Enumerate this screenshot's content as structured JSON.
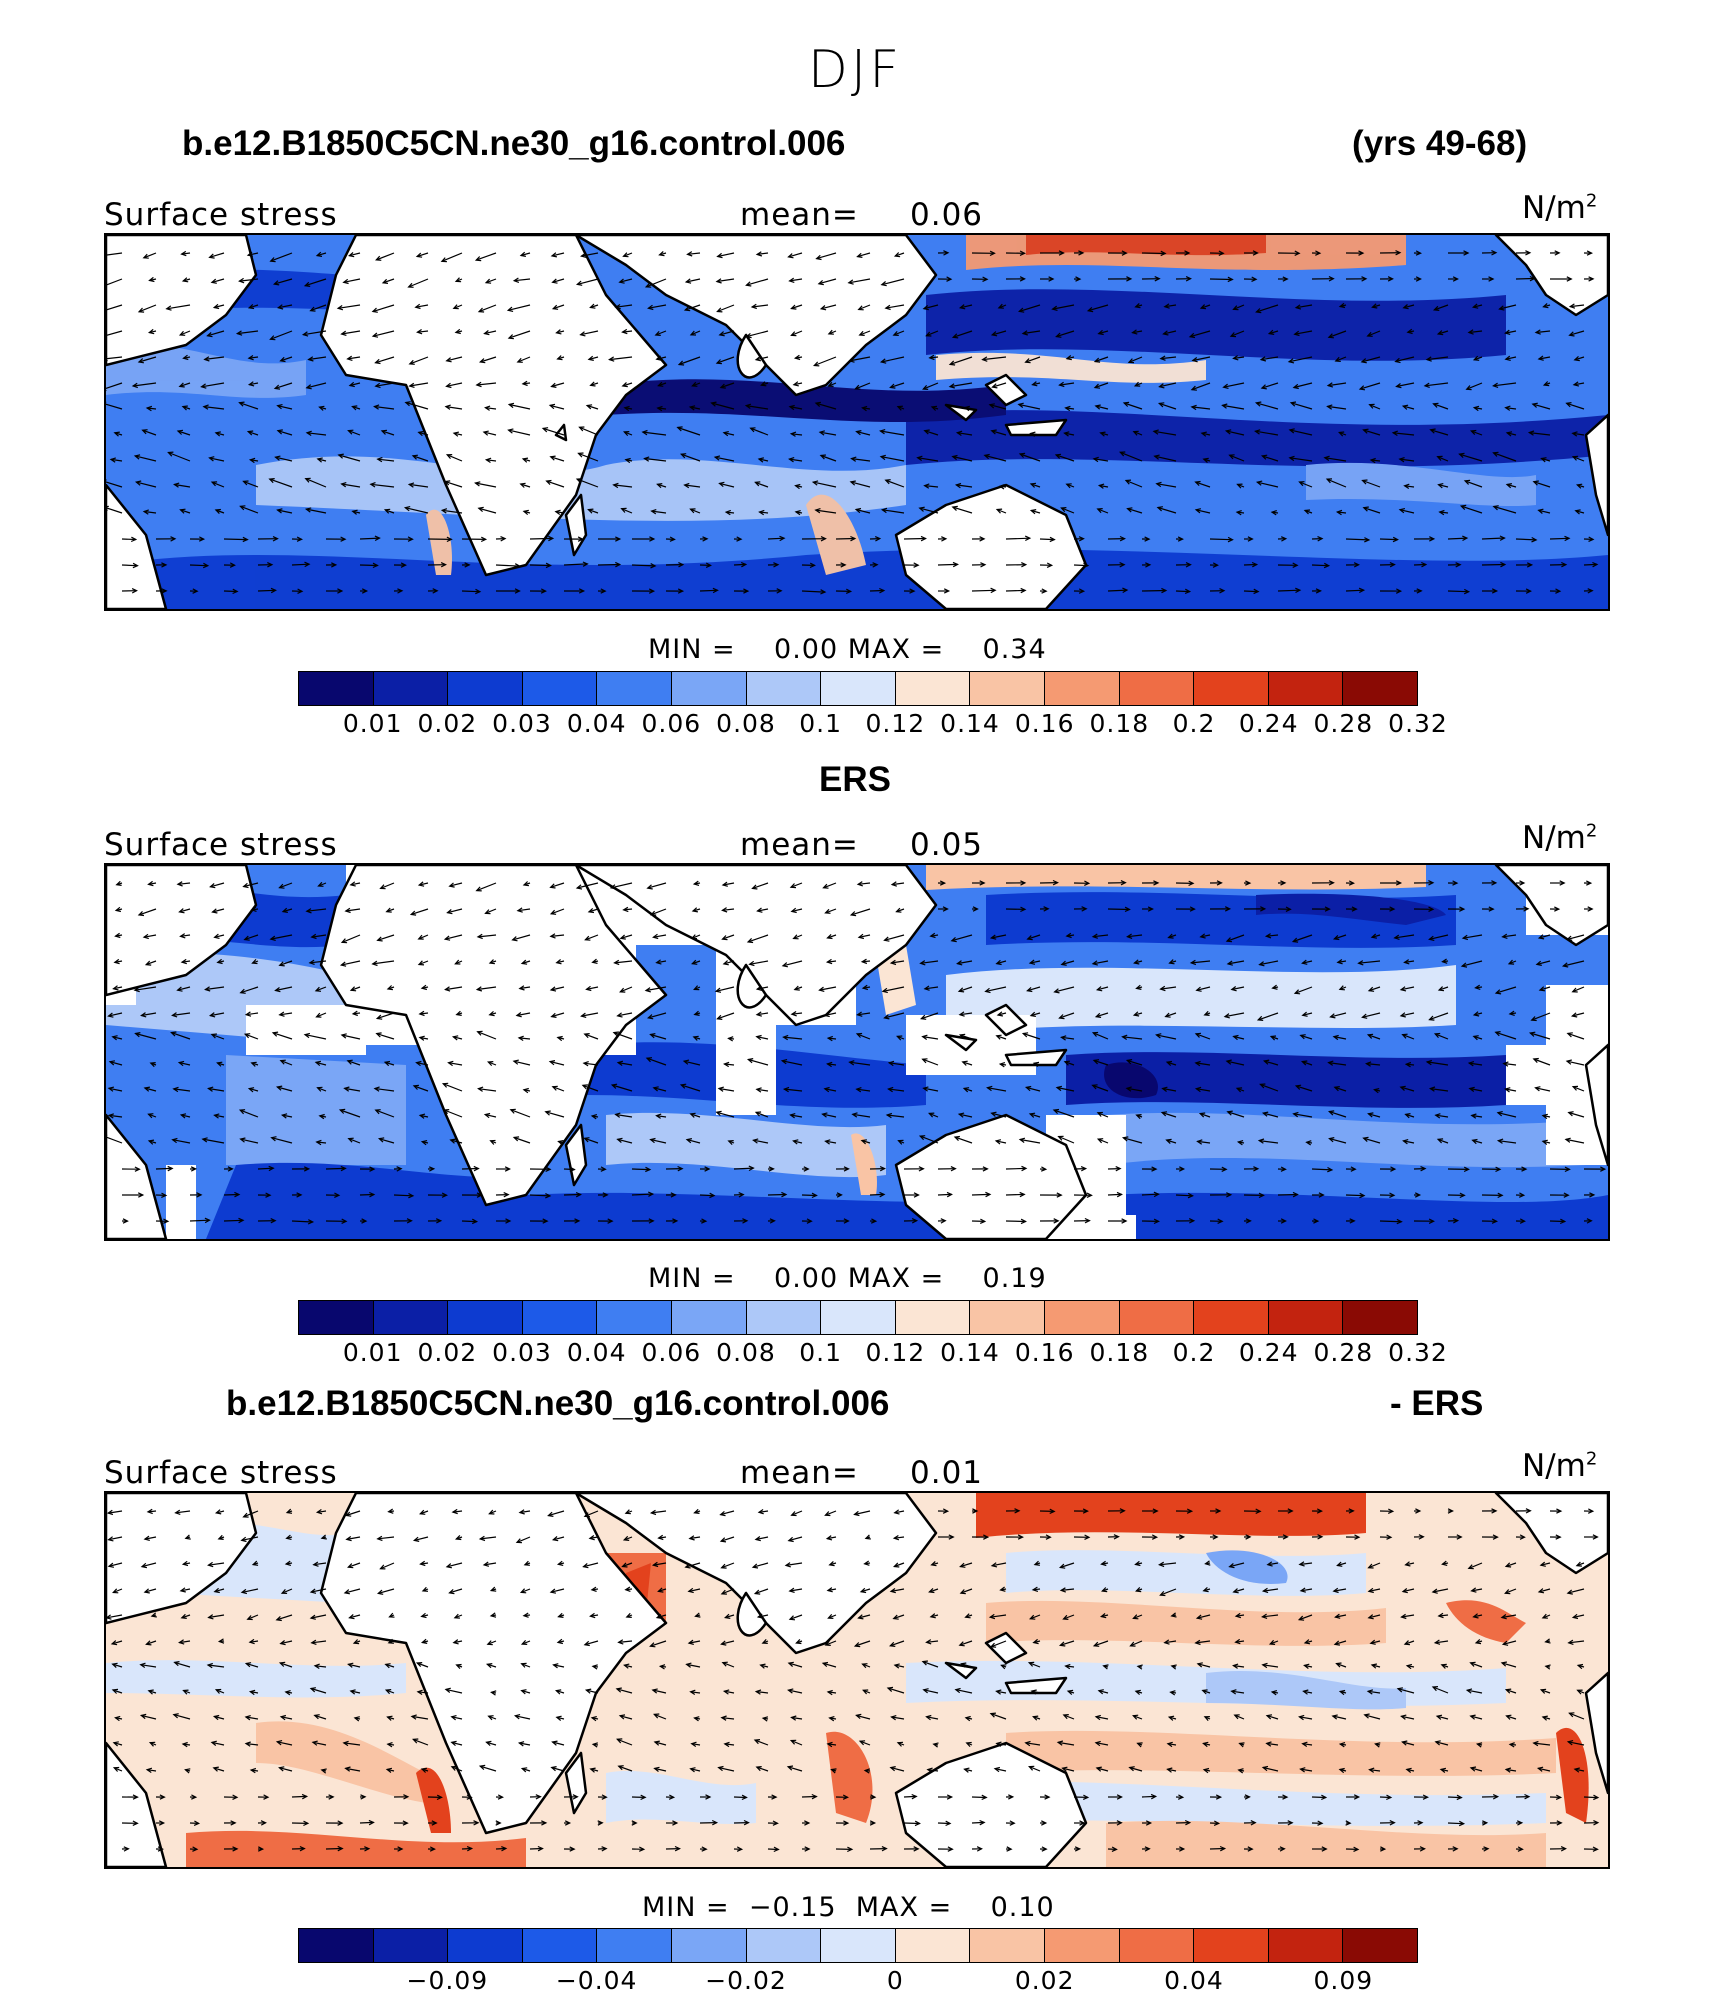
{
  "title": "DJF",
  "colors": [
    "#08076e",
    "#0b1fa6",
    "#0d3bd0",
    "#1d5ae8",
    "#3f7ef2",
    "#7aa6f6",
    "#adc8f8",
    "#d9e6fb",
    "#fbe5d4",
    "#f9c4a5",
    "#f59a72",
    "#ef6d45",
    "#e3421d",
    "#c3230f",
    "#8a0a04"
  ],
  "panels": [
    {
      "header_left": "b.e12.B1850C5CN.ne30_g16.control.006",
      "header_right": "(yrs 49-68)",
      "variable": "Surface stress",
      "mean_label": "mean=",
      "mean_value": "0.06",
      "units": "N/m",
      "units_exp": "2",
      "min_label": "MIN =",
      "min_value": "0.00",
      "max_label": "MAX =",
      "max_value": "0.34",
      "ticks": [
        "0.01",
        "0.02",
        "0.03",
        "0.04",
        "0.06",
        "0.08",
        "0.1",
        "0.12",
        "0.14",
        "0.16",
        "0.18",
        "0.2",
        "0.24",
        "0.28",
        "0.32"
      ]
    },
    {
      "header_center": "ERS",
      "variable": "Surface stress",
      "mean_label": "mean=",
      "mean_value": "0.05",
      "units": "N/m",
      "units_exp": "2",
      "min_label": "MIN =",
      "min_value": "0.00",
      "max_label": "MAX =",
      "max_value": "0.19",
      "ticks": [
        "0.01",
        "0.02",
        "0.03",
        "0.04",
        "0.06",
        "0.08",
        "0.1",
        "0.12",
        "0.14",
        "0.16",
        "0.18",
        "0.2",
        "0.24",
        "0.28",
        "0.32"
      ]
    },
    {
      "header_left": "b.e12.B1850C5CN.ne30_g16.control.006",
      "header_right": "- ERS",
      "variable": "Surface stress",
      "mean_label": "mean=",
      "mean_value": "0.01",
      "units": "N/m",
      "units_exp": "2",
      "min_label": "MIN =",
      "min_value": "−0.15",
      "max_label": "MAX =",
      "max_value": "0.10",
      "ticks": [
        "−0.09",
        "−0.04",
        "−0.02",
        "0",
        "0.02",
        "0.04",
        "0.09"
      ]
    }
  ]
}
